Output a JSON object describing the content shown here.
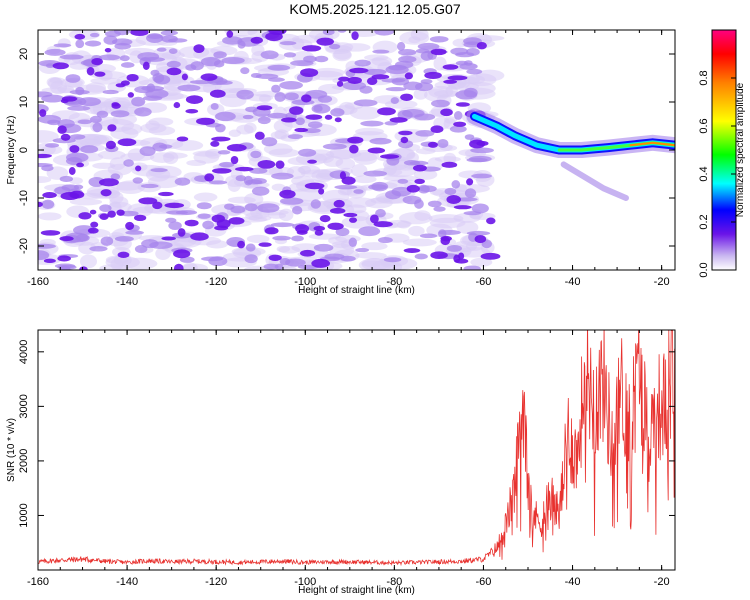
{
  "title": "KOM5.2025.121.12.05.G07",
  "colors": {
    "line": "#e8322f",
    "background": "#ffffff",
    "axis": "#000000",
    "heat_low": "#c9b6f0",
    "heat_mid": "#6a14e8"
  },
  "chart_data": [
    {
      "type": "heatmap",
      "xlabel": "Height of straight line (km)",
      "ylabel": "Frequency (Hz)",
      "xlim": [
        -160,
        -17
      ],
      "ylim": [
        -25,
        25
      ],
      "x_ticks": [
        -160,
        -140,
        -120,
        -100,
        -80,
        -60,
        -40,
        -20
      ],
      "x_tick_labels": [
        "-160",
        "-140",
        "-120",
        "-100",
        "-80",
        "-60",
        "-40",
        "-20"
      ],
      "y_ticks": [
        -20,
        -10,
        0,
        10,
        20
      ],
      "y_tick_labels": [
        "-20",
        "-10",
        "0",
        "10",
        "20"
      ],
      "colorbar": {
        "label": "Normalized spectral amplitude",
        "range": [
          0,
          1
        ],
        "ticks": [
          0.0,
          0.2,
          0.4,
          0.6,
          0.8
        ],
        "tick_labels": [
          "0.0",
          "0.2",
          "0.4",
          "0.6",
          "0.8"
        ]
      },
      "signal_track": [
        {
          "x": -62,
          "y": 7
        },
        {
          "x": -57,
          "y": 5
        },
        {
          "x": -53,
          "y": 3
        },
        {
          "x": -48,
          "y": 1
        },
        {
          "x": -43,
          "y": 0
        },
        {
          "x": -38,
          "y": 0
        },
        {
          "x": -32,
          "y": 0.5
        },
        {
          "x": -27,
          "y": 1
        },
        {
          "x": -22,
          "y": 1.5
        },
        {
          "x": -17,
          "y": 1
        }
      ],
      "noise_region": {
        "x": [
          -160,
          -58
        ],
        "y": [
          -25,
          25
        ]
      }
    },
    {
      "type": "line",
      "xlabel": "Height of straight line (km)",
      "ylabel": "SNR (10 * v/v)",
      "xlim": [
        -160,
        -17
      ],
      "ylim": [
        0,
        4400
      ],
      "x_ticks": [
        -160,
        -140,
        -120,
        -100,
        -80,
        -60,
        -40,
        -20
      ],
      "x_tick_labels": [
        "-160",
        "-140",
        "-120",
        "-100",
        "-80",
        "-60",
        "-40",
        "-20"
      ],
      "y_ticks": [
        1000,
        2000,
        3000,
        4000
      ],
      "y_tick_labels": [
        "1000",
        "2000",
        "3000",
        "4000"
      ],
      "series": [
        {
          "x": [
            -160,
            -155,
            -150,
            -145,
            -140,
            -135,
            -130,
            -125,
            -120,
            -115,
            -110,
            -105,
            -100,
            -95,
            -90,
            -85,
            -80,
            -75,
            -70,
            -65,
            -60,
            -57,
            -55,
            -53,
            -51,
            -49,
            -47,
            -45,
            -43,
            -41,
            -39,
            -37,
            -35,
            -33,
            -31,
            -29,
            -27,
            -25,
            -23,
            -21,
            -19,
            -17
          ],
          "values": [
            150,
            180,
            200,
            160,
            140,
            170,
            150,
            160,
            150,
            140,
            150,
            160,
            140,
            150,
            150,
            140,
            130,
            140,
            150,
            160,
            200,
            400,
            800,
            1500,
            3200,
            1000,
            900,
            1400,
            1000,
            2500,
            2000,
            3800,
            3000,
            3500,
            2200,
            3300,
            2600,
            3800,
            2400,
            3000,
            3000,
            4000
          ]
        }
      ]
    }
  ]
}
